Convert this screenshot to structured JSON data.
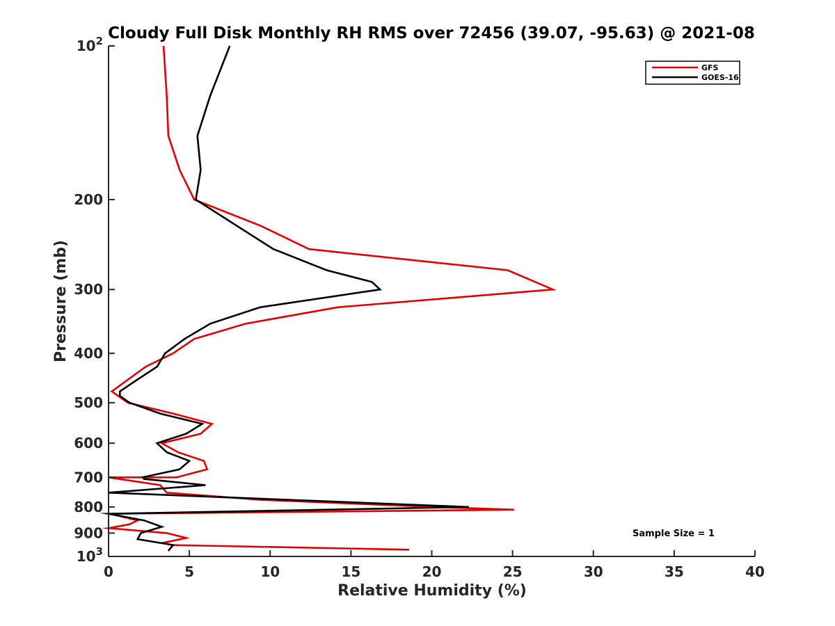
{
  "chart_data": {
    "type": "line",
    "title": "Cloudy Full Disk Monthly RH RMS over 72456 (39.07, -95.63) @ 2021-08",
    "xlabel": "Relative Humidity (%)",
    "ylabel": "Pressure (mb)",
    "xlim": [
      0,
      40
    ],
    "ylim": [
      100,
      1000
    ],
    "yscale": "log",
    "y_reversed": true,
    "x_ticks": [
      0,
      5,
      10,
      15,
      20,
      25,
      30,
      35,
      40
    ],
    "x_tick_labels": [
      "0",
      "5",
      "10",
      "15",
      "20",
      "25",
      "30",
      "35",
      "40"
    ],
    "y_ticks": [
      100,
      200,
      300,
      400,
      500,
      600,
      700,
      800,
      900,
      1000
    ],
    "y_tick_labels": [
      {
        "base": "10",
        "exp": "2"
      },
      {
        "base": "200",
        "exp": ""
      },
      {
        "base": "300",
        "exp": ""
      },
      {
        "base": "400",
        "exp": ""
      },
      {
        "base": "500",
        "exp": ""
      },
      {
        "base": "600",
        "exp": ""
      },
      {
        "base": "700",
        "exp": ""
      },
      {
        "base": "800",
        "exp": ""
      },
      {
        "base": "900",
        "exp": ""
      },
      {
        "base": "10",
        "exp": "3"
      }
    ],
    "legend_position": "top-right",
    "annotation": "Sample Size = 1",
    "series": [
      {
        "name": "GFS",
        "color": "#e00000",
        "points": [
          [
            3.4,
            100
          ],
          [
            3.6,
            125
          ],
          [
            3.7,
            150
          ],
          [
            4.4,
            175
          ],
          [
            5.3,
            200
          ],
          [
            9.4,
            225
          ],
          [
            12.4,
            250
          ],
          [
            24.7,
            275
          ],
          [
            27.5,
            300
          ],
          [
            14.2,
            325
          ],
          [
            8.5,
            350
          ],
          [
            5.3,
            375
          ],
          [
            4.0,
            400
          ],
          [
            2.3,
            425
          ],
          [
            0.2,
            475
          ],
          [
            1.2,
            500
          ],
          [
            4.0,
            525
          ],
          [
            6.4,
            550
          ],
          [
            5.7,
            575
          ],
          [
            3.3,
            600
          ],
          [
            4.3,
            625
          ],
          [
            5.9,
            650
          ],
          [
            6.1,
            675
          ],
          [
            4.2,
            700
          ],
          [
            0.0,
            700
          ],
          [
            3.2,
            725
          ],
          [
            3.6,
            750
          ],
          [
            9.5,
            775
          ],
          [
            20.3,
            800
          ],
          [
            25.1,
            810
          ],
          [
            0.1,
            825
          ],
          [
            1.8,
            850
          ],
          [
            1.3,
            865
          ],
          [
            0.0,
            880
          ],
          [
            3.6,
            900
          ],
          [
            4.8,
            920
          ],
          [
            3.4,
            940
          ],
          [
            3.9,
            950
          ],
          [
            18.6,
            970
          ]
        ]
      },
      {
        "name": "GOES-16",
        "color": "#000000",
        "points": [
          [
            7.5,
            100
          ],
          [
            6.3,
            125
          ],
          [
            5.5,
            150
          ],
          [
            5.7,
            175
          ],
          [
            5.4,
            200
          ],
          [
            10.2,
            250
          ],
          [
            13.5,
            275
          ],
          [
            16.3,
            290
          ],
          [
            16.8,
            300
          ],
          [
            9.4,
            325
          ],
          [
            6.3,
            350
          ],
          [
            4.7,
            375
          ],
          [
            3.5,
            400
          ],
          [
            3.0,
            425
          ],
          [
            1.8,
            450
          ],
          [
            0.7,
            475
          ],
          [
            0.7,
            485
          ],
          [
            1.3,
            500
          ],
          [
            3.2,
            525
          ],
          [
            5.8,
            550
          ],
          [
            4.8,
            575
          ],
          [
            3.0,
            600
          ],
          [
            3.6,
            625
          ],
          [
            5.0,
            650
          ],
          [
            4.4,
            675
          ],
          [
            2.1,
            700
          ],
          [
            2.2,
            705
          ],
          [
            6.0,
            725
          ],
          [
            0.0,
            750
          ],
          [
            22.3,
            800
          ],
          [
            0.0,
            825
          ],
          [
            2.2,
            850
          ],
          [
            3.3,
            875
          ],
          [
            2.0,
            900
          ],
          [
            1.8,
            925
          ],
          [
            4.0,
            950
          ],
          [
            3.7,
            975
          ]
        ]
      }
    ]
  }
}
